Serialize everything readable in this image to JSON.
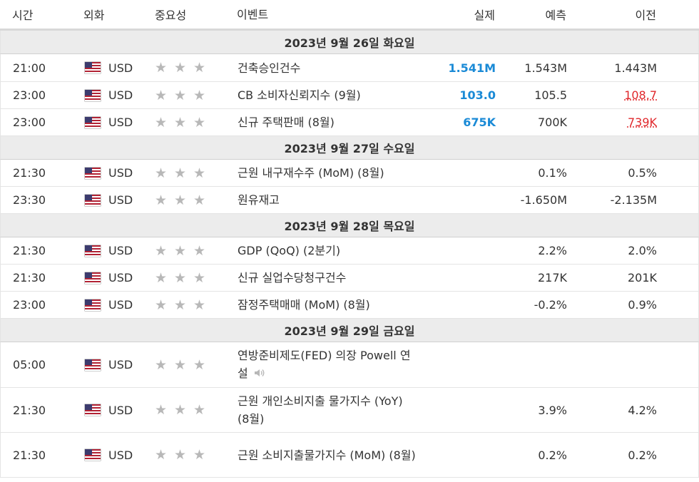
{
  "headers": {
    "time": "시간",
    "currency": "외화",
    "importance": "중요성",
    "event": "이벤트",
    "actual": "실제",
    "forecast": "예측",
    "previous": "이전"
  },
  "days": [
    {
      "date": "2023년 9월 26일 화요일",
      "events": [
        {
          "time": "21:00",
          "cur": "USD",
          "event": "건축승인건수",
          "actual": "1.541M",
          "forecast": "1.543M",
          "previous": "1.443M"
        },
        {
          "time": "23:00",
          "cur": "USD",
          "event": "CB 소비자신뢰지수 (9월)",
          "actual": "103.0",
          "forecast": "105.5",
          "previous": "108.7"
        },
        {
          "time": "23:00",
          "cur": "USD",
          "event": "신규 주택판매 (8월)",
          "actual": "675K",
          "forecast": "700K",
          "previous": "739K"
        }
      ]
    },
    {
      "date": "2023년 9월 27일 수요일",
      "events": [
        {
          "time": "21:30",
          "cur": "USD",
          "event": "근원 내구재수주 (MoM) (8월)",
          "actual": "",
          "forecast": "0.1%",
          "previous": "0.5%"
        },
        {
          "time": "23:30",
          "cur": "USD",
          "event": "원유재고",
          "actual": "",
          "forecast": "-1.650M",
          "previous": "-2.135M"
        }
      ]
    },
    {
      "date": "2023년 9월 28일 목요일",
      "events": [
        {
          "time": "21:30",
          "cur": "USD",
          "event": "GDP (QoQ) (2분기)",
          "actual": "",
          "forecast": "2.2%",
          "previous": "2.0%"
        },
        {
          "time": "21:30",
          "cur": "USD",
          "event": "신규 실업수당청구건수",
          "actual": "",
          "forecast": "217K",
          "previous": "201K"
        },
        {
          "time": "23:00",
          "cur": "USD",
          "event": "잠정주택매매 (MoM) (8월)",
          "actual": "",
          "forecast": "-0.2%",
          "previous": "0.9%"
        }
      ]
    },
    {
      "date": "2023년 9월 29일 금요일",
      "events": [
        {
          "time": "05:00",
          "cur": "USD",
          "event": "연방준비제도(FED) 의장 Powell 연설",
          "actual": "",
          "forecast": "",
          "previous": ""
        },
        {
          "time": "21:30",
          "cur": "USD",
          "event": "근원 개인소비지출 물가지수 (YoY) (8월)",
          "actual": "",
          "forecast": "3.9%",
          "previous": "4.2%"
        },
        {
          "time": "21:30",
          "cur": "USD",
          "event": "근원 소비지출물가지수 (MoM) (8월)",
          "actual": "",
          "forecast": "0.2%",
          "previous": "0.2%"
        }
      ]
    }
  ],
  "importance_stars": 3,
  "colors": {
    "actual_better": "#1a8ad6",
    "previous_revised": "#e0282c"
  }
}
